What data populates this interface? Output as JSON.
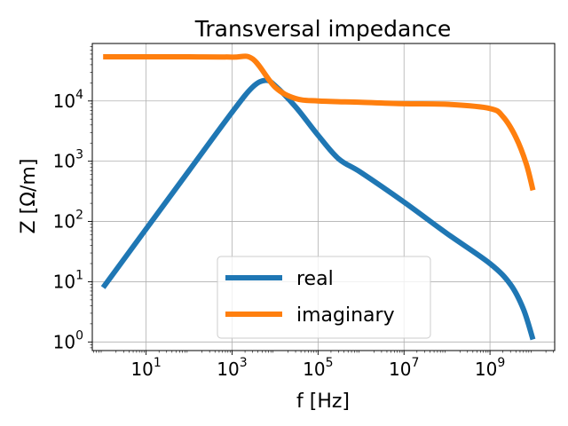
{
  "chart_data": {
    "type": "line",
    "title": "Transversal impedance",
    "xlabel": "f [Hz]",
    "ylabel": "Z [Ω/m]",
    "x_scale": "log",
    "y_scale": "log",
    "xlim": [
      0.56,
      32000000000.0
    ],
    "ylim": [
      0.72,
      90000
    ],
    "x_ticks": [
      {
        "value": 10,
        "base": "10",
        "exp": "1"
      },
      {
        "value": 1000,
        "base": "10",
        "exp": "3"
      },
      {
        "value": 100000,
        "base": "10",
        "exp": "5"
      },
      {
        "value": 10000000,
        "base": "10",
        "exp": "7"
      },
      {
        "value": 1000000000,
        "base": "10",
        "exp": "9"
      }
    ],
    "y_ticks": [
      {
        "value": 1,
        "base": "10",
        "exp": "0"
      },
      {
        "value": 10,
        "base": "10",
        "exp": "1"
      },
      {
        "value": 100,
        "base": "10",
        "exp": "2"
      },
      {
        "value": 1000,
        "base": "10",
        "exp": "3"
      },
      {
        "value": 10000,
        "base": "10",
        "exp": "4"
      }
    ],
    "grid": true,
    "legend_position": "lower-center",
    "series": [
      {
        "name": "real",
        "color": "#1f77b4",
        "x": [
          1,
          10,
          100,
          1000,
          3000,
          6000,
          10000,
          30000,
          100000,
          300000,
          1000000,
          10000000,
          100000000,
          1000000000,
          3000000000,
          6000000000,
          10000000000
        ],
        "y": [
          8,
          75,
          700,
          6500,
          17000,
          22000,
          18000,
          8000,
          2700,
          1100,
          650,
          210,
          63,
          20,
          9,
          3.5,
          1.1
        ]
      },
      {
        "name": "imaginary",
        "color": "#ff7f0e",
        "x": [
          1,
          10,
          100,
          1000,
          3000,
          10000,
          30000,
          100000,
          1000000,
          10000000,
          100000000,
          1000000000,
          2000000000,
          4000000000,
          7000000000,
          10000000000
        ],
        "y": [
          54000,
          54000,
          54000,
          53500,
          50000,
          17000,
          11000,
          10000,
          9500,
          9000,
          8800,
          7500,
          5500,
          2500,
          900,
          330
        ]
      }
    ]
  }
}
